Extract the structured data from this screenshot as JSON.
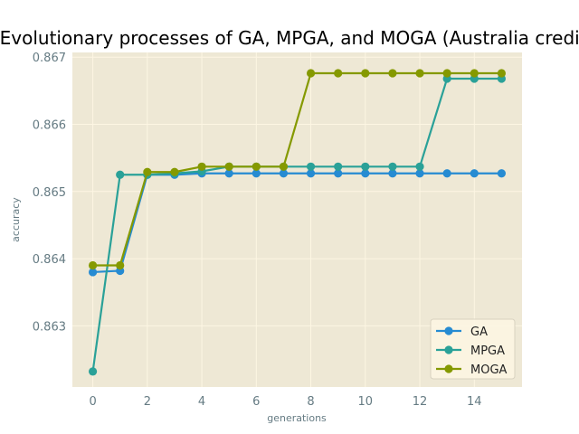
{
  "chart_data": {
    "type": "line",
    "title": "Evolutionary processes of GA, MPGA, and MOGA (Australia credit)",
    "xlabel": "generations",
    "ylabel": "accuracy",
    "x": [
      0,
      1,
      2,
      3,
      4,
      5,
      6,
      7,
      8,
      9,
      10,
      11,
      12,
      13,
      14,
      15
    ],
    "xlim": [
      -0.75,
      15.75
    ],
    "ylim": [
      0.86209,
      0.86707
    ],
    "x_ticks": [
      0,
      2,
      4,
      6,
      8,
      10,
      12,
      14
    ],
    "y_ticks": [
      0.863,
      0.864,
      0.865,
      0.866,
      0.867
    ],
    "grid": true,
    "legend_position": "lower right",
    "series": [
      {
        "name": "GA",
        "color": "#268bd2",
        "values": [
          0.8638,
          0.86382,
          0.86525,
          0.86525,
          0.86527,
          0.86527,
          0.86527,
          0.86527,
          0.86527,
          0.86527,
          0.86527,
          0.86527,
          0.86527,
          0.86527,
          0.86527,
          0.86527
        ]
      },
      {
        "name": "MPGA",
        "color": "#2aa198",
        "values": [
          0.86232,
          0.86525,
          0.86525,
          0.86527,
          0.8653,
          0.86537,
          0.86537,
          0.86537,
          0.86537,
          0.86537,
          0.86537,
          0.86537,
          0.86537,
          0.86668,
          0.86668,
          0.86668
        ]
      },
      {
        "name": "MOGA",
        "color": "#859900",
        "values": [
          0.8639,
          0.8639,
          0.86529,
          0.86529,
          0.86537,
          0.86537,
          0.86537,
          0.86537,
          0.86676,
          0.86676,
          0.86676,
          0.86676,
          0.86676,
          0.86676,
          0.86676,
          0.86676
        ]
      }
    ]
  }
}
